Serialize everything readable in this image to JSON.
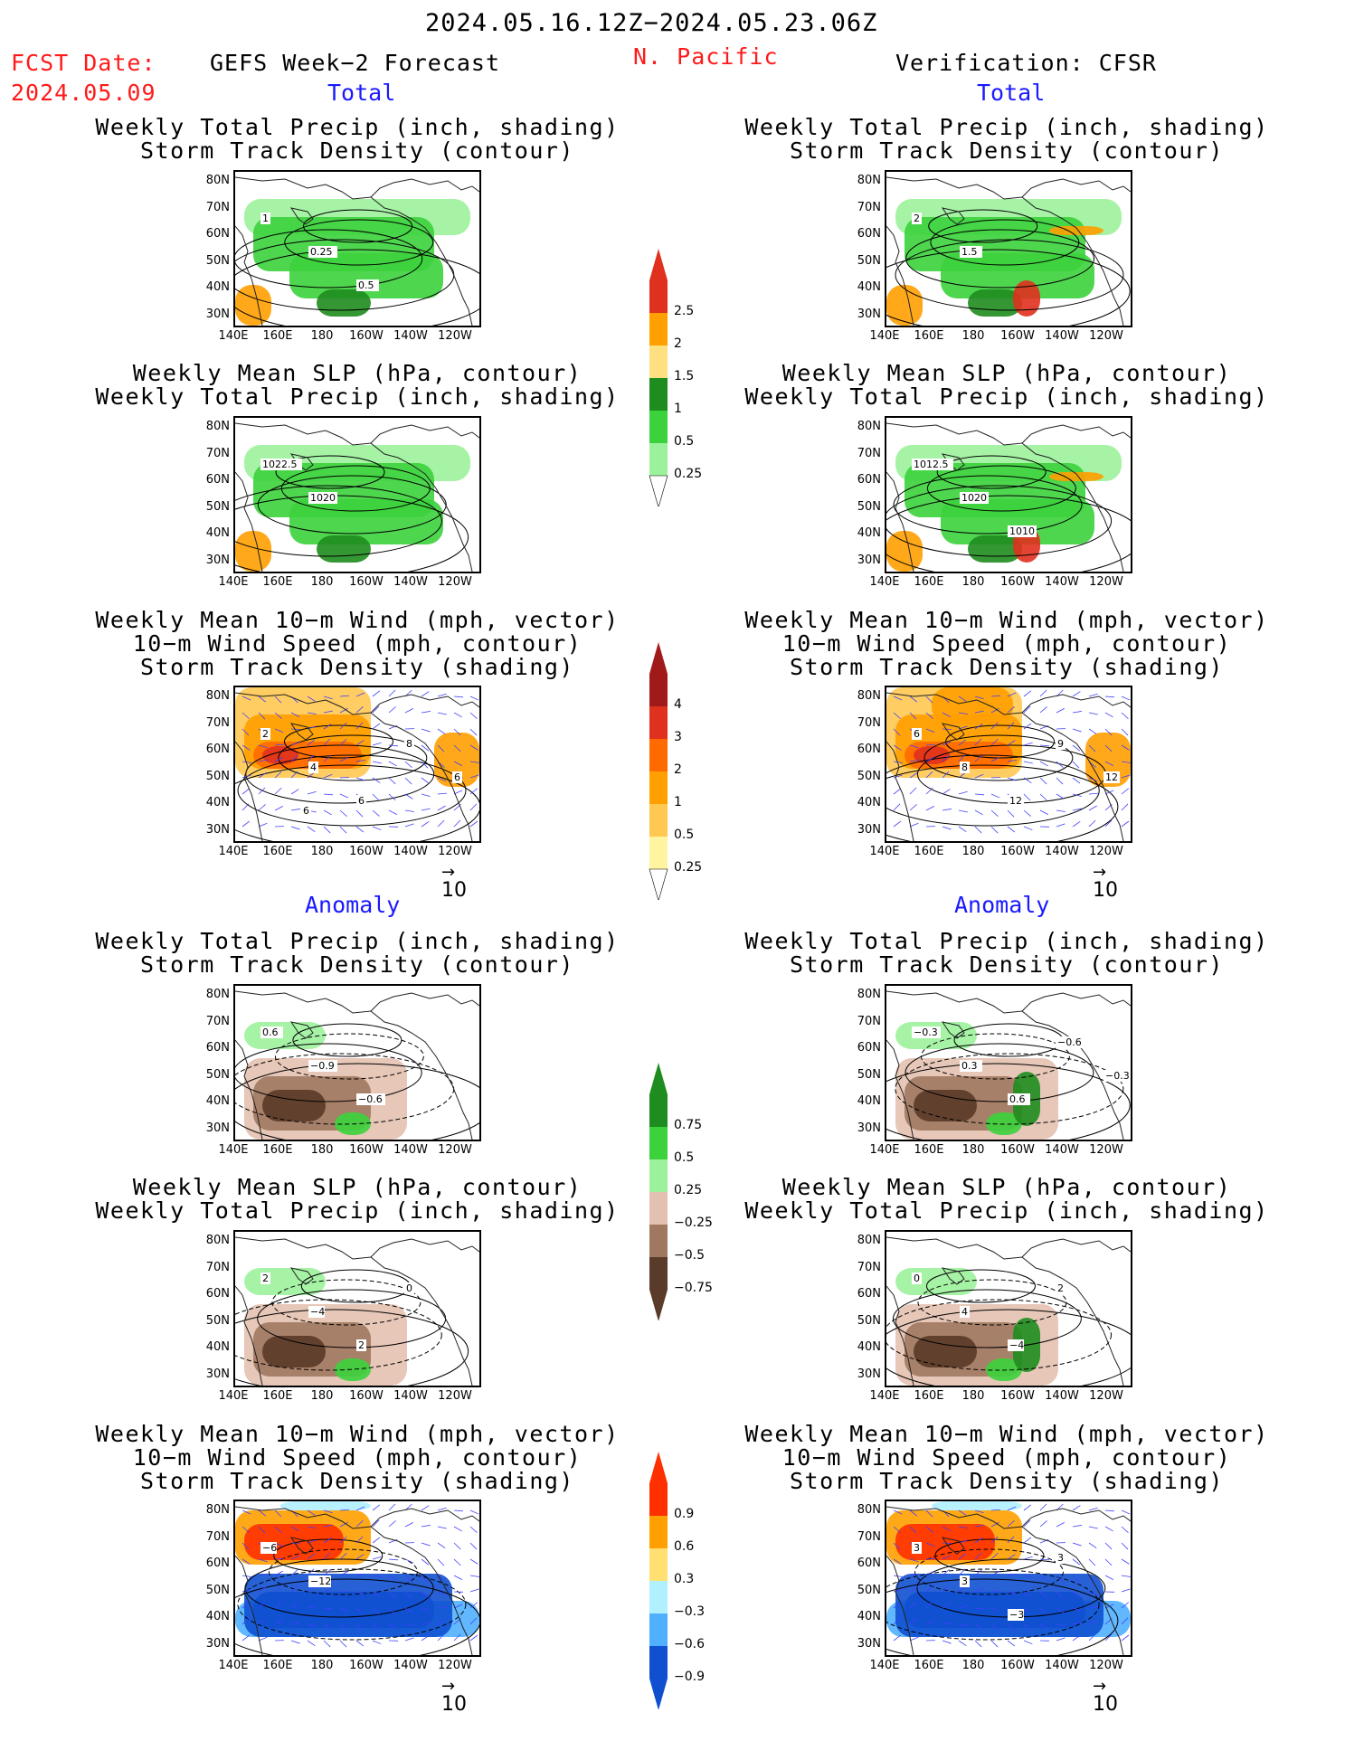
{
  "header": {
    "period": "2024.05.16.12Z−2024.05.23.06Z",
    "fcst_label": "FCST Date:",
    "fcst_date": "2024.05.09",
    "left_title": "GEFS Week−2 Forecast",
    "region": "N. Pacific",
    "right_title": "Verification: CFSR"
  },
  "sections": {
    "total": "Total",
    "anomaly": "Anomaly"
  },
  "panel_titles": {
    "precip_track": [
      "Weekly Total Precip (inch, shading)",
      "Storm Track Density (contour)"
    ],
    "slp_precip": [
      "Weekly Mean SLP (hPa, contour)",
      "Weekly Total Precip (inch, shading)"
    ],
    "wind_track": [
      "Weekly Mean 10−m Wind (mph, vector)",
      "10−m Wind Speed (mph, contour)",
      "Storm Track Density (shading)"
    ]
  },
  "axes": {
    "lat": [
      "80N",
      "70N",
      "60N",
      "50N",
      "40N",
      "30N"
    ],
    "lon": [
      "140E",
      "160E",
      "180",
      "160W",
      "140W",
      "120W"
    ]
  },
  "vector_ref": "10",
  "colorbars": {
    "precip_total": {
      "labels": [
        "2.5",
        "2",
        "1.5",
        "1",
        "0.5",
        "0.25"
      ],
      "colors": [
        "#e0301e",
        "#ff9f00",
        "#ffe080",
        "#1e8c1e",
        "#3cd23c",
        "#9cf29c"
      ]
    },
    "track_total": {
      "labels": [
        "4",
        "3",
        "2",
        "1",
        "0.5",
        "0.25"
      ],
      "colors": [
        "#a01a1a",
        "#e0301e",
        "#ff6a00",
        "#ff9f00",
        "#ffc850",
        "#fff4a0"
      ]
    },
    "precip_anom": {
      "labels": [
        "0.75",
        "0.5",
        "0.25",
        "−0.25",
        "−0.5",
        "−0.75"
      ],
      "colors": [
        "#1e8c1e",
        "#3cd23c",
        "#9cf29c",
        "#e3c1b0",
        "#a07860",
        "#5a3a28"
      ]
    },
    "track_anom": {
      "labels": [
        "0.9",
        "0.6",
        "0.3",
        "−0.3",
        "−0.6",
        "−0.9"
      ],
      "colors": [
        "#ff3000",
        "#ffa000",
        "#ffe070",
        "#b0f0ff",
        "#50b0ff",
        "#1050d0"
      ]
    }
  },
  "contour_labels": {
    "f_pt": [
      "1",
      "0.25",
      "0.5"
    ],
    "v_pt": [
      "2",
      "1.5"
    ],
    "f_sp": [
      "1022.5",
      "1020"
    ],
    "v_sp": [
      "1012.5",
      "1020",
      "1010"
    ],
    "f_wt": [
      "2",
      "4",
      "6",
      "8",
      "6",
      "6"
    ],
    "v_wt": [
      "6",
      "8",
      "12",
      "9",
      "12"
    ],
    "fa_pt": [
      "0.6",
      "−0.9",
      "−0.6"
    ],
    "va_pt": [
      "−0.3",
      "0.3",
      "0.6",
      "−0.6",
      "−0.3"
    ],
    "fa_sp": [
      "2",
      "−4",
      "2",
      "0"
    ],
    "va_sp": [
      "0",
      "4",
      "−4",
      "2"
    ],
    "fa_wt": [
      "−6",
      "−12"
    ],
    "va_wt": [
      "3",
      "3",
      "−3",
      "3"
    ]
  }
}
